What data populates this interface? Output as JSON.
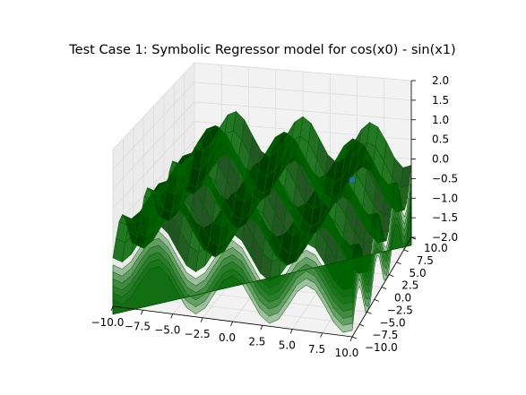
{
  "chart_data": {
    "type": "surface3d",
    "title": "Test Case 1: Symbolic Regressor model for cos(x0) - sin(x1)",
    "xlabel": "",
    "ylabel": "",
    "zlabel": "",
    "x_ticks": [
      "−10.0",
      "−7.5",
      "−5.0",
      "−2.5",
      "0.0",
      "2.5",
      "5.0",
      "7.5",
      "10.0"
    ],
    "y_ticks": [
      "−10.0",
      "−7.5",
      "−5.0",
      "−2.5",
      "0.0",
      "2.5",
      "5.0",
      "7.5",
      "10.0"
    ],
    "z_ticks": [
      "−2.0",
      "−1.5",
      "−1.0",
      "−0.5",
      "0.0",
      "0.5",
      "1.0",
      "1.5",
      "2.0"
    ],
    "xlim": [
      -10,
      10
    ],
    "ylim": [
      -10,
      10
    ],
    "zlim": [
      -2,
      2
    ],
    "grid": true,
    "surface_color": "#006400",
    "scatter_color": "#1f77b4",
    "scatter_points": [
      {
        "x0": 10.0,
        "x1": -10.0,
        "y": 2.0
      }
    ]
  }
}
